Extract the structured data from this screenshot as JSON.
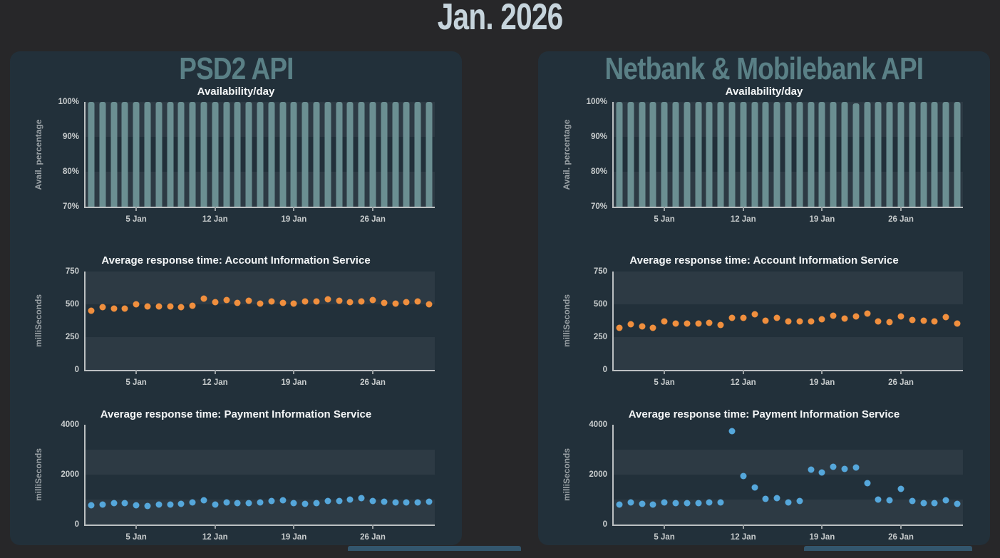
{
  "page": {
    "title": "Jan. 2026"
  },
  "panels": [
    {
      "title": "PSD2 API"
    },
    {
      "title": "Netbank & Mobilebank API"
    }
  ],
  "colors": {
    "page_background": "#272729",
    "card_background": "#22303a",
    "main_title": "#c6d4dc",
    "panel_title": "#5a8086",
    "bar_teal": "#6b8f92",
    "dot_orange": "#f08f3e",
    "dot_blue": "#55a7db",
    "axis_line": "#bcc0c2",
    "tick_text": "#c8cccd"
  },
  "chart_data": [
    {
      "panel": "PSD2 API",
      "type": "bar",
      "title": "Availability/day",
      "ylabel": "Avail. percentage",
      "ylim": [
        70,
        100
      ],
      "yticks": [
        {
          "value": 100,
          "label": "100%"
        },
        {
          "value": 90,
          "label": "90%"
        },
        {
          "value": 80,
          "label": "80%"
        },
        {
          "value": 70,
          "label": "70%"
        }
      ],
      "light_bands": [
        [
          70,
          80
        ],
        [
          90,
          100
        ]
      ],
      "xticks": [
        {
          "day": 5,
          "label": "5 Jan"
        },
        {
          "day": 12,
          "label": "12 Jan"
        },
        {
          "day": 19,
          "label": "19 Jan"
        },
        {
          "day": 26,
          "label": "26 Jan"
        }
      ],
      "x_unit": "day of January",
      "values": [
        100,
        100,
        100,
        100,
        100,
        100,
        100,
        100,
        100,
        100,
        100,
        100,
        100,
        100,
        100,
        100,
        100,
        100,
        100,
        100,
        100,
        100,
        100,
        100,
        100,
        100,
        100,
        100,
        100,
        100,
        100
      ],
      "color": "#6b8f92",
      "grid": "horizontal-bands",
      "legend": "none"
    },
    {
      "panel": "PSD2 API",
      "type": "scatter",
      "title": "Average response time: Account Information Service",
      "ylabel": "milliSeconds",
      "ylim": [
        0,
        750
      ],
      "yticks": [
        {
          "value": 750,
          "label": "750"
        },
        {
          "value": 500,
          "label": "500"
        },
        {
          "value": 250,
          "label": "250"
        },
        {
          "value": 0,
          "label": "0"
        }
      ],
      "light_bands": [
        [
          0,
          250
        ],
        [
          500,
          750
        ]
      ],
      "xticks": [
        {
          "day": 5,
          "label": "5 Jan"
        },
        {
          "day": 12,
          "label": "12 Jan"
        },
        {
          "day": 19,
          "label": "19 Jan"
        },
        {
          "day": 26,
          "label": "26 Jan"
        }
      ],
      "x_unit": "day of January",
      "values": [
        450,
        476,
        466,
        468,
        498,
        486,
        484,
        486,
        480,
        490,
        542,
        518,
        530,
        510,
        526,
        504,
        524,
        510,
        506,
        522,
        520,
        538,
        526,
        514,
        520,
        530,
        510,
        508,
        514,
        522,
        502
      ],
      "color": "#f08f3e",
      "grid": "horizontal-bands",
      "legend": "none"
    },
    {
      "panel": "PSD2 API",
      "type": "scatter",
      "title": "Average response time: Payment Information Service",
      "ylabel": "milliSeconds",
      "ylim": [
        0,
        4000
      ],
      "yticks": [
        {
          "value": 4000,
          "label": "4000"
        },
        {
          "value": 2000,
          "label": "2000"
        },
        {
          "value": 0,
          "label": "0"
        }
      ],
      "light_bands": [
        [
          0,
          1000
        ],
        [
          2000,
          3000
        ]
      ],
      "xticks": [
        {
          "day": 5,
          "label": "5 Jan"
        },
        {
          "day": 12,
          "label": "12 Jan"
        },
        {
          "day": 19,
          "label": "19 Jan"
        },
        {
          "day": 26,
          "label": "26 Jan"
        }
      ],
      "x_unit": "day of January",
      "values": [
        780,
        800,
        845,
        850,
        770,
        748,
        790,
        802,
        830,
        878,
        975,
        790,
        890,
        856,
        846,
        880,
        948,
        958,
        846,
        822,
        870,
        950,
        956,
        1000,
        1045,
        950,
        920,
        882,
        896,
        900,
        915
      ],
      "color": "#55a7db",
      "grid": "horizontal-bands",
      "legend": "none"
    },
    {
      "panel": "Netbank & Mobilebank API",
      "type": "bar",
      "title": "Availability/day",
      "ylabel": "Avail. percentage",
      "ylim": [
        70,
        100
      ],
      "yticks": [
        {
          "value": 100,
          "label": "100%"
        },
        {
          "value": 90,
          "label": "90%"
        },
        {
          "value": 80,
          "label": "80%"
        },
        {
          "value": 70,
          "label": "70%"
        }
      ],
      "light_bands": [
        [
          70,
          80
        ],
        [
          90,
          100
        ]
      ],
      "xticks": [
        {
          "day": 5,
          "label": "5 Jan"
        },
        {
          "day": 12,
          "label": "12 Jan"
        },
        {
          "day": 19,
          "label": "19 Jan"
        },
        {
          "day": 26,
          "label": "26 Jan"
        }
      ],
      "x_unit": "day of January",
      "values": [
        100,
        100,
        100,
        100,
        100,
        100,
        100,
        100,
        100,
        100,
        100,
        100,
        100,
        100,
        100,
        100,
        100,
        100,
        100,
        100,
        100,
        99.5,
        100,
        100,
        100,
        100,
        100,
        100,
        100,
        100,
        100
      ],
      "color": "#6b8f92",
      "grid": "horizontal-bands",
      "legend": "none"
    },
    {
      "panel": "Netbank & Mobilebank API",
      "type": "scatter",
      "title": "Average response time: Account Information Service",
      "ylabel": "milliSeconds",
      "ylim": [
        0,
        750
      ],
      "yticks": [
        {
          "value": 750,
          "label": "750"
        },
        {
          "value": 500,
          "label": "500"
        },
        {
          "value": 250,
          "label": "250"
        },
        {
          "value": 0,
          "label": "0"
        }
      ],
      "light_bands": [
        [
          0,
          250
        ],
        [
          500,
          750
        ]
      ],
      "xticks": [
        {
          "day": 5,
          "label": "5 Jan"
        },
        {
          "day": 12,
          "label": "12 Jan"
        },
        {
          "day": 19,
          "label": "19 Jan"
        },
        {
          "day": 26,
          "label": "26 Jan"
        }
      ],
      "x_unit": "day of January",
      "values": [
        320,
        350,
        330,
        322,
        368,
        356,
        354,
        352,
        360,
        340,
        395,
        397,
        425,
        375,
        398,
        372,
        370,
        370,
        385,
        412,
        390,
        408,
        428,
        372,
        365,
        405,
        380,
        375,
        372,
        402,
        355
      ],
      "color": "#f08f3e",
      "grid": "horizontal-bands",
      "legend": "none"
    },
    {
      "panel": "Netbank & Mobilebank API",
      "type": "scatter",
      "title": "Average response time: Payment Information Service",
      "ylabel": "milliSeconds",
      "ylim": [
        0,
        4000
      ],
      "yticks": [
        {
          "value": 4000,
          "label": "4000"
        },
        {
          "value": 2000,
          "label": "2000"
        },
        {
          "value": 0,
          "label": "0"
        }
      ],
      "light_bands": [
        [
          0,
          1000
        ],
        [
          2000,
          3000
        ]
      ],
      "xticks": [
        {
          "day": 5,
          "label": "5 Jan"
        },
        {
          "day": 12,
          "label": "12 Jan"
        },
        {
          "day": 19,
          "label": "19 Jan"
        },
        {
          "day": 26,
          "label": "26 Jan"
        }
      ],
      "x_unit": "day of January",
      "values": [
        800,
        880,
        830,
        800,
        880,
        850,
        848,
        852,
        890,
        888,
        3750,
        1950,
        1500,
        1030,
        1060,
        880,
        930,
        2200,
        2080,
        2320,
        2220,
        2290,
        1650,
        1000,
        970,
        1430,
        930,
        850,
        845,
        960,
        830
      ],
      "color": "#55a7db",
      "grid": "horizontal-bands",
      "legend": "none"
    }
  ]
}
